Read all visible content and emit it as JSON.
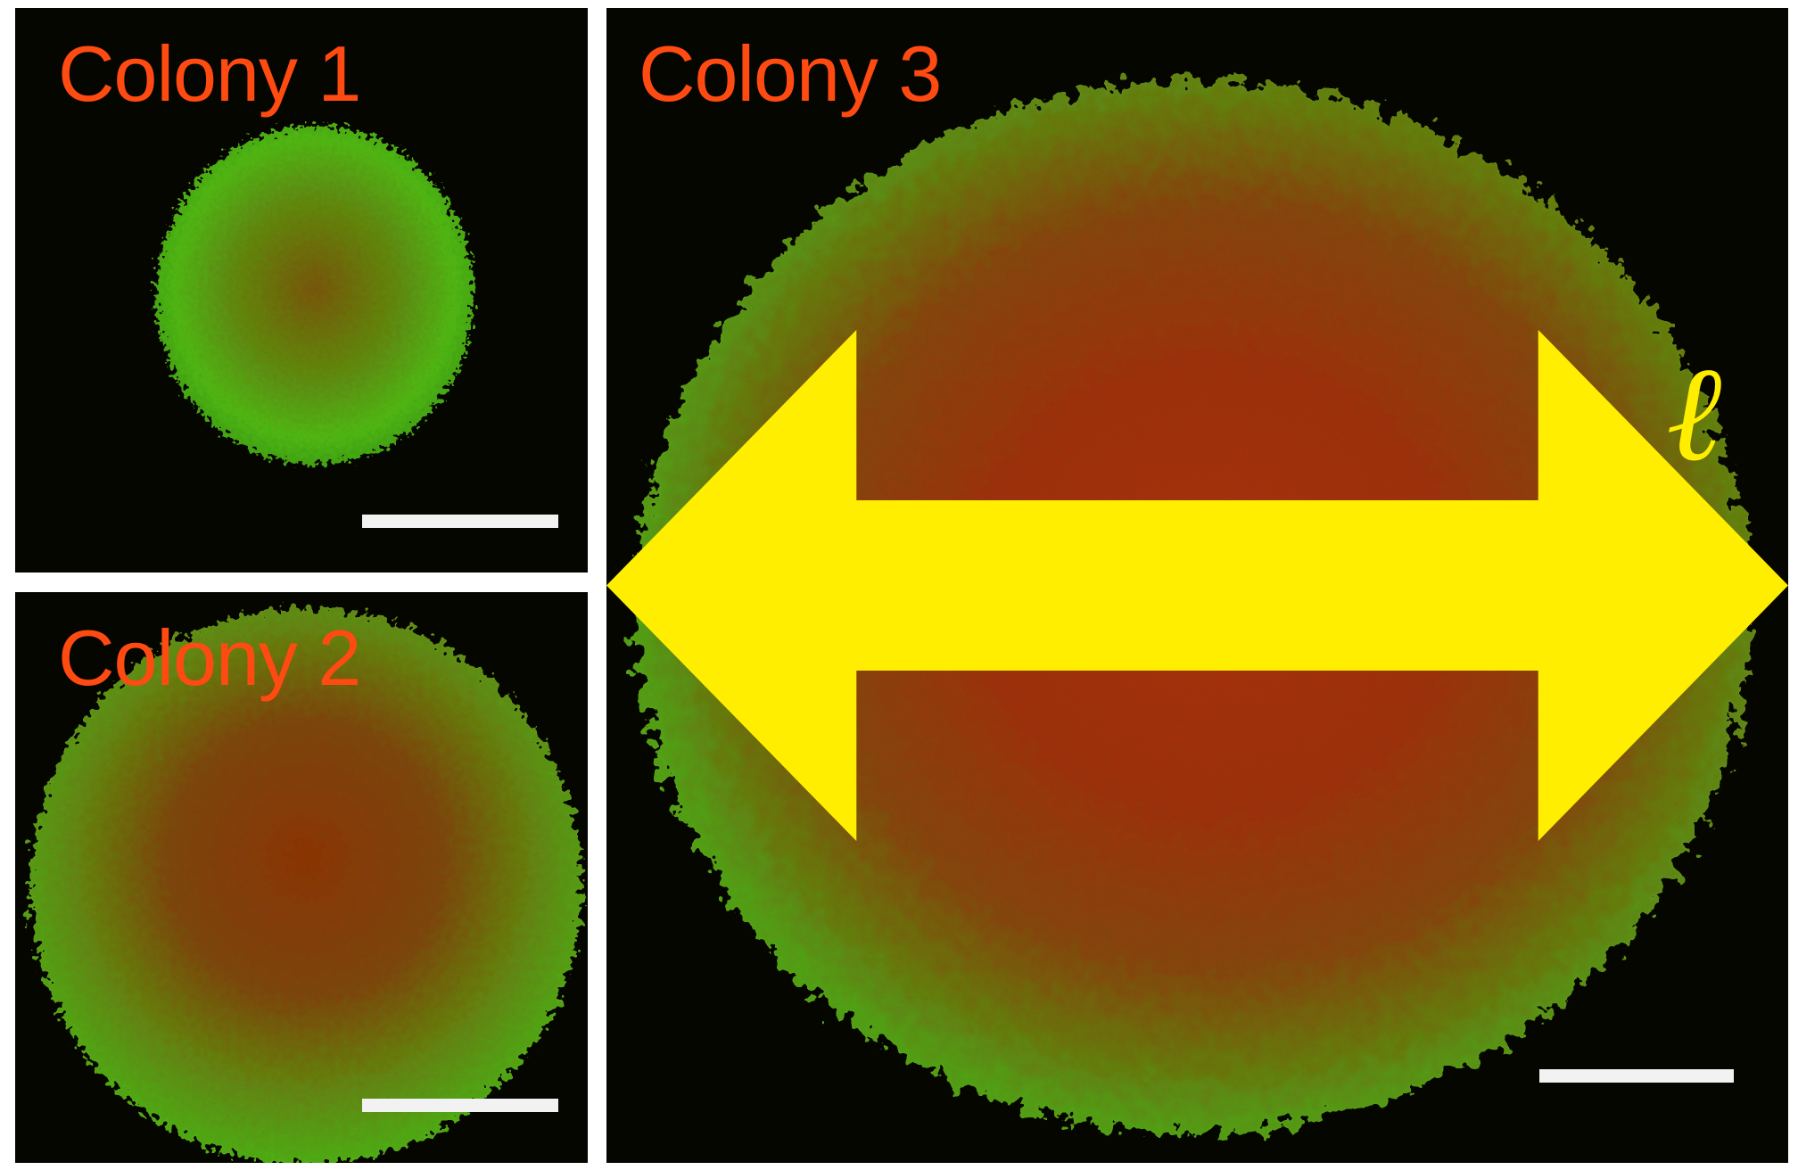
{
  "figure": {
    "panels": [
      {
        "id": "colony-1",
        "label": "Colony 1"
      },
      {
        "id": "colony-2",
        "label": "Colony 2"
      },
      {
        "id": "colony-3",
        "label": "Colony 3"
      }
    ],
    "annotation": {
      "symbol": "ℓ"
    }
  },
  "colors": {
    "label": "#ff4a12",
    "annotation": "#ffee00",
    "scale_bar": "#f2f2f2",
    "background": "#050600",
    "cell_green": "#5cc21c",
    "cell_red": "#cc2a06"
  }
}
